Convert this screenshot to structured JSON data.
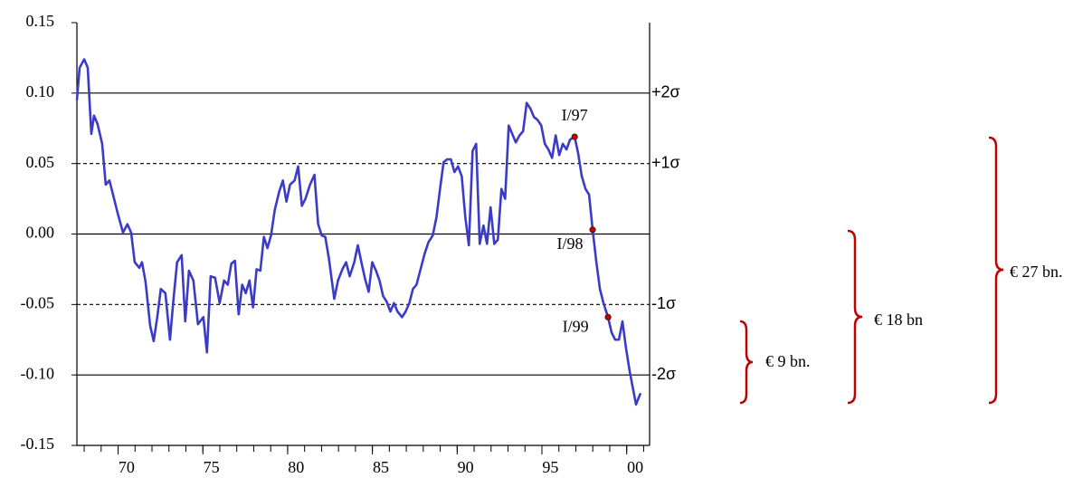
{
  "chart_data": {
    "type": "line",
    "xlim": [
      1967.57,
      2001.35
    ],
    "xticks": [
      {
        "value": 1970,
        "label": "70"
      },
      {
        "value": 1975,
        "label": "75"
      },
      {
        "value": 1980,
        "label": "80"
      },
      {
        "value": 1985,
        "label": "85"
      },
      {
        "value": 1990,
        "label": "90"
      },
      {
        "value": 1995,
        "label": "95"
      },
      {
        "value": 2000,
        "label": "00"
      }
    ],
    "xminorticks": [
      1968,
      1969,
      1970,
      1971,
      1972,
      1973,
      1974,
      1975,
      1976,
      1977,
      1978,
      1979,
      1980,
      1981,
      1982,
      1983,
      1984,
      1985,
      1986,
      1987,
      1988,
      1989,
      1990,
      1991,
      1992,
      1993,
      1994,
      1995,
      1996,
      1997,
      1998,
      1999,
      2000,
      2001
    ],
    "ylim": [
      -0.15,
      0.15
    ],
    "yticks": [
      0.15,
      {
        "value": 0.1,
        "label": "0.10"
      },
      0.05,
      {
        "value": 0,
        "label": "0.00"
      },
      -0.05,
      {
        "value": -0.1,
        "label": "-0.10"
      },
      -0.15
    ],
    "reference_lines": [
      {
        "value": 0.1,
        "label": "+2σ",
        "style": "solid"
      },
      {
        "value": 0.05,
        "label": "+1σ",
        "style": "dashed"
      },
      {
        "value": 0,
        "style": "solid"
      },
      {
        "value": -0.05,
        "label": "-1σ",
        "style": "dashed"
      },
      {
        "value": -0.1,
        "label": "-2σ",
        "style": "solid"
      }
    ],
    "series": [
      {
        "color": "#3b3bc8",
        "x": [
          1967.57,
          1967.73,
          1968.0,
          1968.21,
          1968.42,
          1968.58,
          1968.79,
          1969.06,
          1969.27,
          1969.49,
          1969.7,
          1969.97,
          1970.29,
          1970.55,
          1970.77,
          1970.98,
          1971.25,
          1971.41,
          1971.62,
          1971.89,
          1972.1,
          1972.31,
          1972.52,
          1972.79,
          1973.06,
          1973.27,
          1973.48,
          1973.75,
          1973.96,
          1974.18,
          1974.44,
          1974.71,
          1975.03,
          1975.24,
          1975.46,
          1975.72,
          1975.99,
          1976.25,
          1976.47,
          1976.68,
          1976.89,
          1977.11,
          1977.32,
          1977.53,
          1977.75,
          1977.96,
          1978.17,
          1978.39,
          1978.6,
          1978.81,
          1979.02,
          1979.24,
          1979.5,
          1979.72,
          1979.93,
          1980.14,
          1980.41,
          1980.62,
          1980.84,
          1981.05,
          1981.32,
          1981.58,
          1981.8,
          1982.01,
          1982.22,
          1982.43,
          1982.75,
          1982.97,
          1983.23,
          1983.45,
          1983.66,
          1983.93,
          1984.14,
          1984.35,
          1984.57,
          1984.78,
          1984.99,
          1985.21,
          1985.42,
          1985.63,
          1985.84,
          1986.06,
          1986.27,
          1986.48,
          1986.75,
          1986.96,
          1987.18,
          1987.39,
          1987.6,
          1987.82,
          1988.08,
          1988.3,
          1988.56,
          1988.78,
          1988.99,
          1989.2,
          1989.41,
          1989.63,
          1989.84,
          1990.05,
          1990.27,
          1990.48,
          1990.69,
          1990.91,
          1991.12,
          1991.33,
          1991.55,
          1991.76,
          1991.97,
          1992.19,
          1992.4,
          1992.61,
          1992.83,
          1993.04,
          1993.25,
          1993.46,
          1993.68,
          1993.89,
          1994.1,
          1994.32,
          1994.53,
          1994.74,
          1994.96,
          1995.17,
          1995.38,
          1995.6,
          1995.81,
          1996.02,
          1996.23,
          1996.45,
          1996.66,
          1996.93,
          1997.14,
          1997.35,
          1997.57,
          1997.78,
          1997.99,
          1998.21,
          1998.42,
          1998.63,
          1998.9,
          1999.11,
          1999.32,
          1999.54,
          1999.75,
          1999.96,
          2000.17,
          2000.39,
          2000.55,
          2000.71,
          2000.82
        ],
        "values": [
          0.095,
          0.118,
          0.124,
          0.118,
          0.071,
          0.084,
          0.078,
          0.064,
          0.035,
          0.038,
          0.028,
          0.015,
          0.001,
          0.007,
          0.001,
          -0.02,
          -0.024,
          -0.02,
          -0.034,
          -0.065,
          -0.076,
          -0.059,
          -0.039,
          -0.042,
          -0.075,
          -0.046,
          -0.02,
          -0.015,
          -0.062,
          -0.026,
          -0.033,
          -0.064,
          -0.059,
          -0.084,
          -0.03,
          -0.031,
          -0.049,
          -0.033,
          -0.036,
          -0.021,
          -0.019,
          -0.057,
          -0.036,
          -0.042,
          -0.033,
          -0.052,
          -0.025,
          -0.026,
          -0.002,
          -0.01,
          -0.001,
          0.017,
          0.03,
          0.038,
          0.023,
          0.035,
          0.038,
          0.048,
          0.02,
          0.025,
          0.035,
          0.042,
          0.007,
          -0.001,
          -0.002,
          -0.017,
          -0.046,
          -0.033,
          -0.025,
          -0.02,
          -0.03,
          -0.02,
          -0.008,
          -0.02,
          -0.032,
          -0.041,
          -0.02,
          -0.026,
          -0.033,
          -0.044,
          -0.048,
          -0.055,
          -0.049,
          -0.055,
          -0.059,
          -0.055,
          -0.049,
          -0.039,
          -0.036,
          -0.026,
          -0.014,
          -0.006,
          -0.001,
          0.012,
          0.032,
          0.051,
          0.053,
          0.053,
          0.044,
          0.048,
          0.041,
          0.012,
          -0.008,
          0.059,
          0.064,
          -0.007,
          0.006,
          -0.007,
          0.019,
          -0.007,
          -0.004,
          0.032,
          0.025,
          0.077,
          0.071,
          0.065,
          0.07,
          0.073,
          0.093,
          0.089,
          0.083,
          0.081,
          0.077,
          0.064,
          0.06,
          0.054,
          0.07,
          0.056,
          0.064,
          0.06,
          0.067,
          0.069,
          0.057,
          0.041,
          0.032,
          0.028,
          0.003,
          -0.02,
          -0.039,
          -0.049,
          -0.059,
          -0.07,
          -0.075,
          -0.075,
          -0.062,
          -0.081,
          -0.097,
          -0.111,
          -0.121,
          -0.116,
          -0.113
        ]
      }
    ],
    "points": [
      {
        "label": "I/97",
        "x": 1996.93,
        "y": 0.069,
        "color": "#c00000"
      },
      {
        "label": "I/98",
        "x": 1997.99,
        "y": 0.003,
        "color": "#c00000"
      },
      {
        "label": "I/99",
        "x": 1998.9,
        "y": -0.059,
        "color": "#c00000"
      }
    ],
    "bracket_labels": [
      "€ 9 bn.",
      "€ 18 bn",
      "€ 27 bn."
    ]
  }
}
